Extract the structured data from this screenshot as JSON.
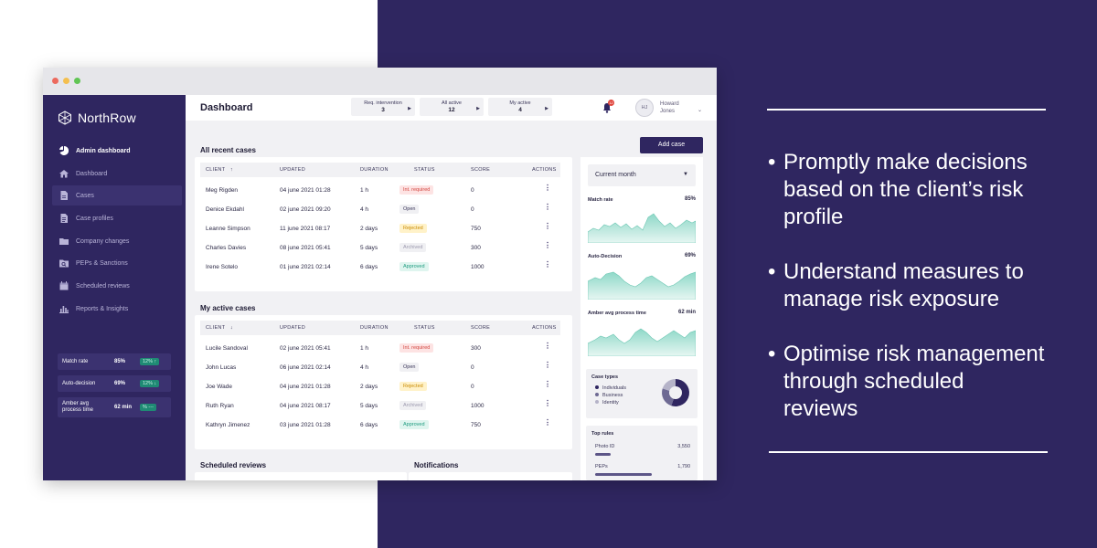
{
  "brand": {
    "name": "NorthRow"
  },
  "sidebar": {
    "items": [
      {
        "label": "Admin dashboard",
        "icon": "pie-chart-icon"
      },
      {
        "label": "Dashboard",
        "icon": "home-icon"
      },
      {
        "label": "Cases",
        "icon": "document-icon"
      },
      {
        "label": "Case profiles",
        "icon": "profile-document-icon"
      },
      {
        "label": "Company changes",
        "icon": "folder-icon"
      },
      {
        "label": "PEPs & Sanctions",
        "icon": "search-folder-icon"
      },
      {
        "label": "Scheduled reviews",
        "icon": "calendar-icon"
      },
      {
        "label": "Reports & Insights",
        "icon": "bar-chart-icon"
      }
    ],
    "stats": [
      {
        "label": "Match rate",
        "value": "85%",
        "badge": "12%",
        "arrow": "↑"
      },
      {
        "label": "Auto-decision",
        "value": "69%",
        "badge": "12%",
        "arrow": "↓"
      },
      {
        "label": "Amber avg process time",
        "value": "62 min",
        "badge": "%",
        "arrow": "---"
      }
    ]
  },
  "header": {
    "title": "Dashboard",
    "pills": [
      {
        "label": "Req. intervention",
        "count": "3"
      },
      {
        "label": "All active",
        "count": "12"
      },
      {
        "label": "My active",
        "count": "4"
      }
    ],
    "notifications_count": "12",
    "user": {
      "initials": "HJ",
      "first": "Howard",
      "last": "Jones"
    }
  },
  "main": {
    "add_case_label": "Add case",
    "recent_title": "All recent cases",
    "active_title": "My active cases",
    "scheduled_title": "Scheduled reviews",
    "notifications_title": "Notifications",
    "columns": [
      "CLIENT",
      "UPDATED",
      "DURATION",
      "STATUS",
      "SCORE",
      "ACTIONS"
    ],
    "recent_cases": [
      {
        "client": "Meg Rigden",
        "updated": "04 june 2021 01:28",
        "duration": "1 h",
        "status": "Int. required",
        "score": "0"
      },
      {
        "client": "Denice Ekdahl",
        "updated": "02 june 2021 09:20",
        "duration": "4 h",
        "status": "Open",
        "score": "0"
      },
      {
        "client": "Leanne Simpson",
        "updated": "11 june 2021 08:17",
        "duration": "2 days",
        "status": "Rejected",
        "score": "750"
      },
      {
        "client": "Charles Davies",
        "updated": "08 june 2021 05:41",
        "duration": "5 days",
        "status": "Archived",
        "score": "300"
      },
      {
        "client": "Irene Sotelo",
        "updated": "01 june 2021 02:14",
        "duration": "6 days",
        "status": "Approved",
        "score": "1000"
      }
    ],
    "active_cases": [
      {
        "client": "Lucile Sandoval",
        "updated": "02 june 2021 05:41",
        "duration": "1 h",
        "status": "Int. required",
        "score": "300"
      },
      {
        "client": "John Lucas",
        "updated": "06 june 2021 02:14",
        "duration": "4 h",
        "status": "Open",
        "score": "0"
      },
      {
        "client": "Joe Wade",
        "updated": "04 june 2021 01:28",
        "duration": "2 days",
        "status": "Rejected",
        "score": "0"
      },
      {
        "client": "Ruth Ryan",
        "updated": "04 june 2021 08:17",
        "duration": "5 days",
        "status": "Archived",
        "score": "1000"
      },
      {
        "client": "Kathryn Jimenez",
        "updated": "03 june 2021 01:28",
        "duration": "6 days",
        "status": "Approved",
        "score": "750"
      }
    ]
  },
  "panel": {
    "period": "Current month",
    "metrics": [
      {
        "label": "Match rate",
        "value": "85%"
      },
      {
        "label": "Auto-Decision",
        "value": "69%"
      },
      {
        "label": "Amber avg process time",
        "value": "62 min"
      }
    ],
    "case_types": {
      "title": "Case types",
      "items": [
        {
          "label": "Individuals",
          "color": "#2f2660",
          "share": 0.55
        },
        {
          "label": "Business",
          "color": "#6e6a93",
          "share": 0.25
        },
        {
          "label": "Identity",
          "color": "#b5b3c8",
          "share": 0.2
        }
      ]
    },
    "top_rules": {
      "title": "Top rules",
      "items": [
        {
          "label": "Photo ID",
          "value": "3,550",
          "fraction": 0.16
        },
        {
          "label": "PEPs",
          "value": "1,790",
          "fraction": 0.6
        }
      ]
    }
  },
  "marketing": {
    "bullets": [
      [
        "Promptly make decisions",
        "based on the client’s risk",
        "profile"
      ],
      [
        "Understand measures to",
        "manage risk exposure"
      ],
      [
        "Optimise risk management",
        "through scheduled",
        "reviews"
      ]
    ]
  },
  "colors": {
    "brand": "#2f2660",
    "accent": "#1f9c80",
    "danger": "#d2453f"
  }
}
